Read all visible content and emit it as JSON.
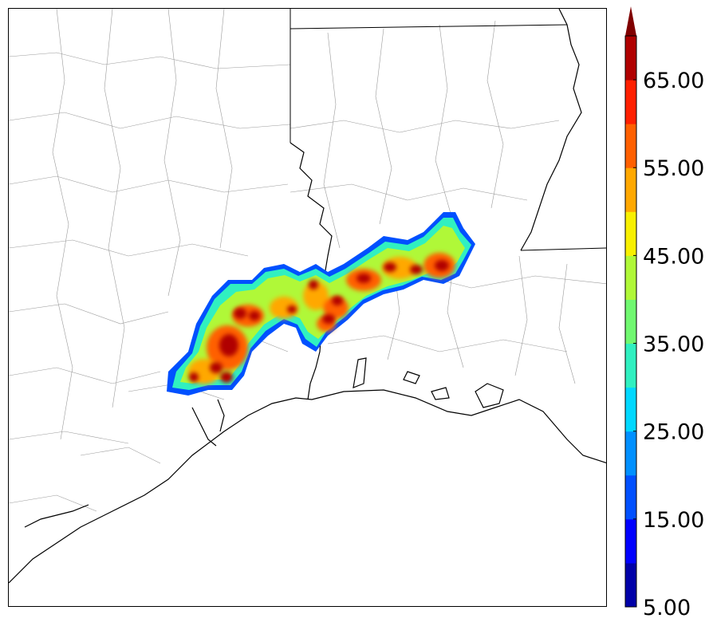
{
  "colorbar": {
    "tick_labels": [
      "5.00",
      "15.00",
      "25.00",
      "35.00",
      "45.00",
      "55.00",
      "65.00"
    ],
    "levels": [
      5,
      10,
      15,
      20,
      25,
      30,
      35,
      40,
      45,
      50,
      55,
      60,
      65,
      70
    ],
    "colors": [
      "#0000a8",
      "#0000ff",
      "#0050ff",
      "#0090ff",
      "#00d8ff",
      "#30f0c0",
      "#70f870",
      "#b0f838",
      "#f8f000",
      "#ffa800",
      "#ff6000",
      "#ff2000",
      "#b00000"
    ],
    "extend": "max",
    "extend_color": "#800000"
  },
  "map": {
    "background": "#ffffff",
    "coastline_color": "#000000",
    "county_color": "#9a9a9a"
  }
}
